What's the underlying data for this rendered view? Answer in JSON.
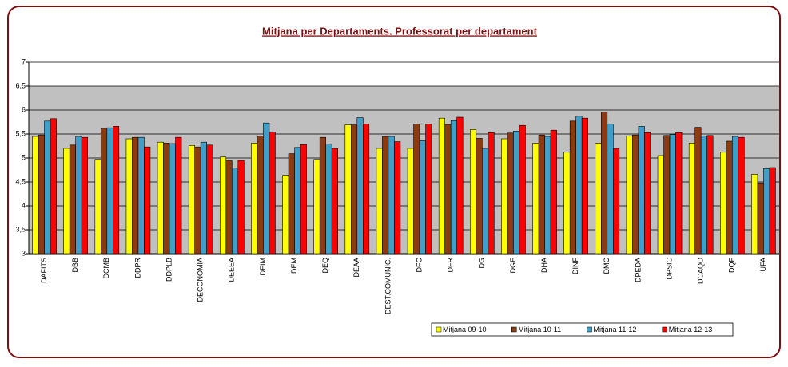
{
  "chart_data": {
    "type": "bar",
    "title": "Mitjana per Departaments. Professorat per departament",
    "categories": [
      "DAFITS",
      "DBB",
      "DCMB",
      "DDPR",
      "DDPLB",
      "DECONOMIA",
      "DEEEA",
      "DEIM",
      "DEM",
      "DEQ",
      "DEAA",
      "DEST.COMUNIC.",
      "DFC",
      "DFR",
      "DG",
      "DGE",
      "DHA",
      "DINF",
      "DMC",
      "DPEDA",
      "DPSIC",
      "DCAQO",
      "DQF",
      "UFA"
    ],
    "series": [
      {
        "name": "Mitjana 09-10",
        "color": "#ffff00",
        "values": [
          5.45,
          5.2,
          4.97,
          5.4,
          5.33,
          5.26,
          5.02,
          5.31,
          4.64,
          4.97,
          5.69,
          5.2,
          5.2,
          5.83,
          5.59,
          5.4,
          5.31,
          5.12,
          5.31,
          5.46,
          5.05,
          5.31,
          5.12,
          4.66
        ]
      },
      {
        "name": "Mitjana 10-11",
        "color": "#8b3a12",
        "values": [
          5.48,
          5.27,
          5.62,
          5.43,
          5.31,
          5.23,
          4.95,
          5.46,
          5.09,
          5.43,
          5.69,
          5.45,
          5.71,
          5.7,
          5.41,
          5.52,
          5.48,
          5.77,
          5.96,
          5.48,
          5.47,
          5.64,
          5.35,
          4.48
        ]
      },
      {
        "name": "Mitjana 11-12",
        "color": "#3f9fc8",
        "values": [
          5.77,
          5.45,
          5.63,
          5.43,
          5.3,
          5.33,
          4.79,
          5.73,
          5.22,
          5.29,
          5.84,
          5.45,
          5.36,
          5.78,
          5.2,
          5.56,
          5.45,
          5.87,
          5.71,
          5.66,
          5.49,
          5.46,
          5.45,
          4.78
        ]
      },
      {
        "name": "Mitjana 12-13",
        "color": "#ff0000",
        "values": [
          5.82,
          5.43,
          5.66,
          5.23,
          5.43,
          5.27,
          4.95,
          5.54,
          5.28,
          5.2,
          5.71,
          5.34,
          5.71,
          5.85,
          5.53,
          5.68,
          5.58,
          5.83,
          5.2,
          5.53,
          5.53,
          5.47,
          5.43,
          4.8
        ]
      }
    ],
    "ylim": [
      3,
      7
    ],
    "yticks": [
      3,
      {
        "value": 3.5,
        "label": "3,5"
      },
      4,
      {
        "value": 4.5,
        "label": "4,5"
      },
      5,
      {
        "value": 5.5,
        "label": "5,5"
      },
      6,
      {
        "value": 6.5,
        "label": "6,5"
      },
      7
    ],
    "grid": true,
    "legend": "bottom-right"
  }
}
